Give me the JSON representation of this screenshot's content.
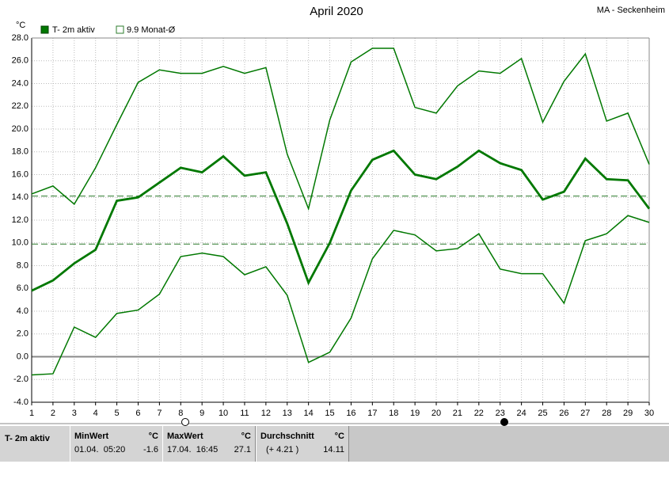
{
  "chart_data": {
    "type": "line",
    "title": "April 2020",
    "station": "MA - Seckenheim",
    "y_unit": "°C",
    "x": [
      1,
      2,
      3,
      4,
      5,
      6,
      7,
      8,
      9,
      10,
      11,
      12,
      13,
      14,
      15,
      16,
      17,
      18,
      19,
      20,
      21,
      22,
      23,
      24,
      25,
      26,
      27,
      28,
      29,
      30
    ],
    "xlim": [
      1,
      30
    ],
    "xticks": [
      1,
      2,
      3,
      4,
      5,
      6,
      7,
      8,
      9,
      10,
      11,
      12,
      13,
      14,
      15,
      16,
      17,
      18,
      19,
      20,
      21,
      22,
      23,
      24,
      25,
      26,
      27,
      28,
      29,
      30
    ],
    "ylim": [
      -4,
      28
    ],
    "yticks": [
      {
        "value": -4,
        "label": "-4.0"
      },
      {
        "value": -2,
        "label": "-2.0"
      },
      {
        "value": 0,
        "label": "0.0"
      },
      {
        "value": 2,
        "label": "2.0"
      },
      {
        "value": 4,
        "label": "4.0"
      },
      {
        "value": 6,
        "label": "6.0"
      },
      {
        "value": 8,
        "label": "8.0"
      },
      {
        "value": 10,
        "label": "10.0"
      },
      {
        "value": 12,
        "label": "12.0"
      },
      {
        "value": 14,
        "label": "14.0"
      },
      {
        "value": 16,
        "label": "16.0"
      },
      {
        "value": 18,
        "label": "18.0"
      },
      {
        "value": 20,
        "label": "20.0"
      },
      {
        "value": 22,
        "label": "22.0"
      },
      {
        "value": 24,
        "label": "24.0"
      },
      {
        "value": 26,
        "label": "26.0"
      },
      {
        "value": 28,
        "label": "28.0"
      }
    ],
    "grid": true,
    "series": [
      {
        "name": "T- 2m aktiv",
        "color": "#007800",
        "values": [
          5.8,
          6.7,
          8.2,
          9.4,
          13.7,
          14.0,
          15.3,
          16.6,
          16.2,
          17.6,
          15.9,
          16.2,
          11.7,
          6.5,
          10.0,
          14.6,
          17.3,
          18.1,
          16.0,
          15.6,
          16.7,
          18.1,
          17.0,
          16.4,
          13.8,
          14.5,
          17.4,
          15.6,
          15.5,
          13.0
        ],
        "max": [
          14.3,
          15.0,
          13.4,
          16.6,
          20.4,
          24.1,
          25.2,
          24.9,
          24.9,
          25.5,
          24.9,
          25.4,
          17.8,
          13.0,
          20.8,
          25.9,
          27.1,
          27.1,
          21.9,
          21.4,
          23.8,
          25.1,
          24.9,
          26.2,
          20.6,
          24.2,
          26.6,
          20.7,
          21.4,
          16.9
        ],
        "min": [
          -1.6,
          -1.5,
          2.6,
          1.7,
          3.8,
          4.1,
          5.5,
          8.8,
          9.1,
          8.8,
          7.2,
          7.9,
          5.4,
          -0.5,
          0.4,
          3.4,
          8.6,
          11.1,
          10.7,
          9.3,
          9.5,
          10.8,
          7.7,
          7.3,
          7.3,
          4.7,
          10.2,
          10.8,
          12.4,
          11.8
        ]
      }
    ],
    "reference_line": {
      "value": 9.9,
      "label": "9.9 Monat-Ø",
      "color": "#2e7d2e"
    },
    "stats": {
      "row_label": "T- 2m aktiv",
      "min": {
        "header": "MinWert",
        "unit": "°C",
        "when": "01.04.  05:20",
        "value": -1.6
      },
      "max": {
        "header": "MaxWert",
        "unit": "°C",
        "when": "17.04.  16:45",
        "value": 27.1
      },
      "mean": {
        "header": "Durchschnitt",
        "unit": "°C",
        "delta": "(+ 4.21 )",
        "value": 14.11
      }
    }
  }
}
